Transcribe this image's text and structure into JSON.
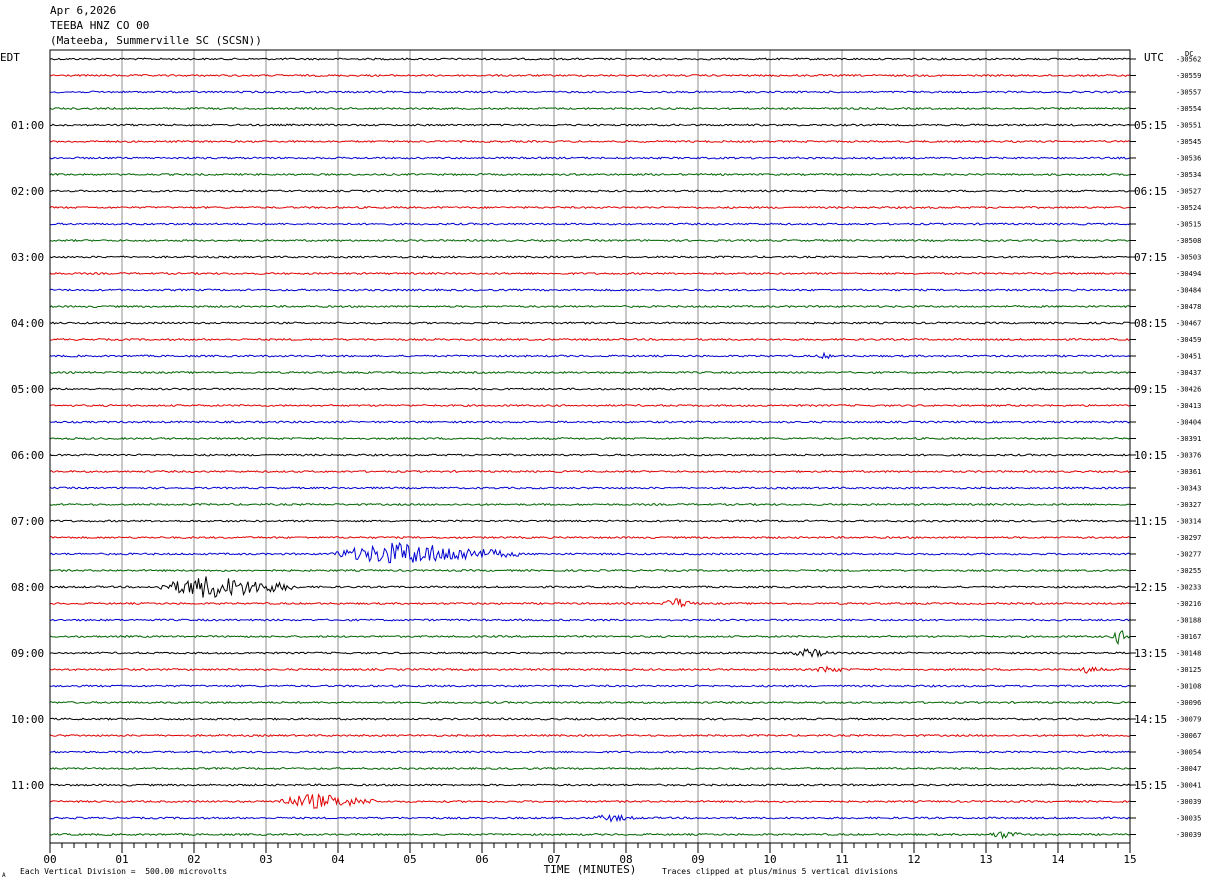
{
  "header": {
    "date": "Apr 6,2026",
    "channel": "TEEBA HNZ CO 00",
    "station": "(Mateeba, Summerville SC (SCSN))"
  },
  "footer": {
    "scale": "Each Vertical Division =  500.00 microvolts",
    "clip": "Traces clipped at plus/minus 5 vertical divisions",
    "corner": "A"
  },
  "chart_data": {
    "type": "line",
    "left_label": "EDT",
    "right_label": "UTC",
    "dc_label": "DC",
    "xlabel": "TIME (MINUTES)",
    "x_ticks": [
      "00",
      "01",
      "02",
      "03",
      "04",
      "05",
      "06",
      "07",
      "08",
      "09",
      "10",
      "11",
      "12",
      "13",
      "14",
      "15"
    ],
    "xlim": [
      0,
      15
    ],
    "grid": true,
    "trace_colors": [
      "#000000",
      "#e00000",
      "#0000d0",
      "#006400"
    ],
    "traces_per_hour": 4,
    "edt_hour_labels": [
      "01:00",
      "02:00",
      "03:00",
      "04:00",
      "05:00",
      "06:00",
      "07:00",
      "08:00",
      "09:00",
      "10:00",
      "11:00"
    ],
    "utc_hour_labels": [
      "05:15",
      "06:15",
      "07:15",
      "08:15",
      "09:15",
      "10:15",
      "11:15",
      "12:15",
      "13:15",
      "14:15",
      "15:15"
    ],
    "dc_offsets": [
      "-30562",
      "-30559",
      "-30557",
      "-30554",
      "-30551",
      "-30545",
      "-30536",
      "-30534",
      "-30527",
      "-30524",
      "-30515",
      "-30508",
      "-30503",
      "-30494",
      "-30484",
      "-30478",
      "-30467",
      "-30459",
      "-30451",
      "-30437",
      "-30426",
      "-30413",
      "-30404",
      "-30391",
      "-30376",
      "-30361",
      "-30343",
      "-30327",
      "-30314",
      "-30297",
      "-30277",
      "-30255",
      "-30233",
      "-30216",
      "-30188",
      "-30167",
      "-30148",
      "-30125",
      "-30108",
      "-30096",
      "-30079",
      "-30067",
      "-30054",
      "-30047",
      "-30041",
      "-30039",
      "-30035",
      "-30039"
    ],
    "events": [
      {
        "trace": 30,
        "start_min": 3.9,
        "end_min": 6.5,
        "amplitude": 12
      },
      {
        "trace": 32,
        "start_min": 1.5,
        "end_min": 3.45,
        "amplitude": 12
      },
      {
        "trace": 33,
        "start_min": 8.5,
        "end_min": 9.0,
        "amplitude": 6
      },
      {
        "trace": 35,
        "start_min": 14.75,
        "end_min": 15.0,
        "amplitude": 8
      },
      {
        "trace": 36,
        "start_min": 10.3,
        "end_min": 10.9,
        "amplitude": 5
      },
      {
        "trace": 37,
        "start_min": 10.6,
        "end_min": 11.1,
        "amplitude": 4
      },
      {
        "trace": 37,
        "start_min": 14.2,
        "end_min": 14.7,
        "amplitude": 4
      },
      {
        "trace": 18,
        "start_min": 10.6,
        "end_min": 11.0,
        "amplitude": 3
      },
      {
        "trace": 45,
        "start_min": 3.1,
        "end_min": 4.6,
        "amplitude": 8
      },
      {
        "trace": 46,
        "start_min": 7.5,
        "end_min": 8.2,
        "amplitude": 4
      },
      {
        "trace": 47,
        "start_min": 13.0,
        "end_min": 13.6,
        "amplitude": 4
      }
    ]
  }
}
